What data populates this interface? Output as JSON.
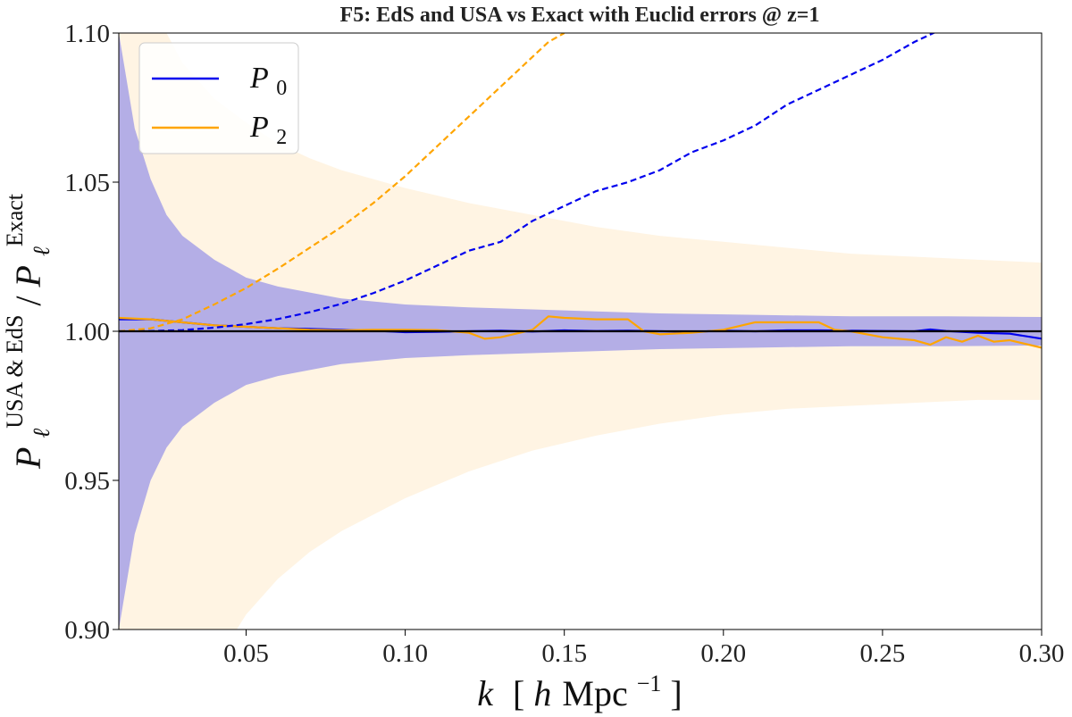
{
  "chart_data": {
    "type": "line",
    "title": "F5: EdS and USA vs Exact with Euclid errors @ z=1",
    "xlabel": {
      "var": "k",
      "unit_pre": "[",
      "unit_h": "h",
      "unit_main": "Mpc",
      "unit_sup": "−1",
      "unit_post": "]"
    },
    "ylabel": {
      "var": "P",
      "sub": "ℓ",
      "sup": "USA & EdS",
      "slash": "/",
      "var2": "P",
      "sub2": "ℓ",
      "sup2": "Exact"
    },
    "xlim": [
      0.01,
      0.3
    ],
    "ylim": [
      0.9,
      1.1
    ],
    "xticks": [
      0.05,
      0.1,
      0.15,
      0.2,
      0.25,
      0.3
    ],
    "xtick_labels": [
      "0.05",
      "0.10",
      "0.15",
      "0.20",
      "0.25",
      "0.30"
    ],
    "yticks": [
      0.9,
      0.95,
      1.0,
      1.05,
      1.1
    ],
    "ytick_labels": [
      "0.90",
      "0.95",
      "1.00",
      "1.05",
      "1.10"
    ],
    "grid": false,
    "legend_position": "top-left",
    "legend": [
      {
        "label_var": "P",
        "label_sub": "0",
        "color": "#0000ee"
      },
      {
        "label_var": "P",
        "label_sub": "2",
        "color": "#ffa500"
      }
    ],
    "reference_line": {
      "y": 1.0,
      "color": "#000000"
    },
    "bands": [
      {
        "name": "P2 Euclid error",
        "color": "#fff4e3",
        "x": [
          0.01,
          0.02,
          0.03,
          0.04,
          0.05,
          0.06,
          0.07,
          0.08,
          0.1,
          0.12,
          0.14,
          0.16,
          0.18,
          0.2,
          0.22,
          0.24,
          0.26,
          0.28,
          0.3
        ],
        "upper": [
          1.14,
          1.11,
          1.09,
          1.078,
          1.07,
          1.063,
          1.058,
          1.054,
          1.048,
          1.043,
          1.039,
          1.035,
          1.032,
          1.03,
          1.028,
          1.026,
          1.025,
          1.024,
          1.023
        ],
        "lower": [
          0.86,
          0.87,
          0.88,
          0.888,
          0.905,
          0.917,
          0.926,
          0.933,
          0.944,
          0.953,
          0.96,
          0.965,
          0.969,
          0.972,
          0.974,
          0.975,
          0.976,
          0.977,
          0.977
        ]
      },
      {
        "name": "P0 Euclid error",
        "color": "#b4aee6",
        "x": [
          0.01,
          0.015,
          0.02,
          0.025,
          0.03,
          0.04,
          0.05,
          0.06,
          0.08,
          0.1,
          0.12,
          0.15,
          0.18,
          0.21,
          0.24,
          0.27,
          0.3
        ],
        "upper": [
          1.1,
          1.068,
          1.051,
          1.039,
          1.032,
          1.024,
          1.018,
          1.015,
          1.011,
          1.009,
          1.008,
          1.007,
          1.006,
          1.0055,
          1.005,
          1.005,
          1.0048
        ],
        "lower": [
          0.9,
          0.932,
          0.95,
          0.961,
          0.968,
          0.976,
          0.982,
          0.985,
          0.989,
          0.991,
          0.992,
          0.993,
          0.994,
          0.9945,
          0.995,
          0.995,
          0.9952
        ]
      }
    ],
    "series": [
      {
        "name": "P0",
        "color": "#0000ee",
        "style": "solid",
        "x": [
          0.01,
          0.02,
          0.03,
          0.04,
          0.05,
          0.06,
          0.07,
          0.08,
          0.09,
          0.1,
          0.11,
          0.12,
          0.13,
          0.14,
          0.15,
          0.16,
          0.17,
          0.18,
          0.19,
          0.2,
          0.21,
          0.22,
          0.23,
          0.24,
          0.25,
          0.26,
          0.265,
          0.27,
          0.28,
          0.29,
          0.3
        ],
        "y": [
          1.004,
          1.004,
          1.003,
          1.002,
          1.0015,
          1.001,
          1.0008,
          1.0005,
          1.0002,
          0.9997,
          0.9998,
          1.0,
          1.0002,
          0.9999,
          1.0003,
          1.0001,
          1.0002,
          1.0,
          0.9998,
          1.0002,
          1.0,
          1.0003,
          1.0003,
          1.0002,
          1.0001,
          1.0,
          1.0006,
          1.0001,
          0.9995,
          0.9992,
          0.9975
        ]
      },
      {
        "name": "P2",
        "color": "#ffa500",
        "style": "solid",
        "x": [
          0.01,
          0.02,
          0.03,
          0.04,
          0.05,
          0.06,
          0.07,
          0.08,
          0.09,
          0.1,
          0.11,
          0.12,
          0.125,
          0.13,
          0.14,
          0.145,
          0.15,
          0.16,
          0.17,
          0.175,
          0.18,
          0.19,
          0.2,
          0.21,
          0.22,
          0.23,
          0.235,
          0.24,
          0.25,
          0.26,
          0.265,
          0.27,
          0.275,
          0.28,
          0.285,
          0.29,
          0.3
        ],
        "y": [
          1.0045,
          1.004,
          1.003,
          1.002,
          1.0015,
          1.001,
          1.0005,
          1.0003,
          1.0005,
          1.0005,
          1.0004,
          0.9995,
          0.9975,
          0.998,
          1.0005,
          1.005,
          1.0045,
          1.004,
          1.004,
          1.0,
          0.999,
          0.9995,
          1.0005,
          1.003,
          1.003,
          1.003,
          1.0005,
          1.0,
          0.998,
          0.997,
          0.9955,
          0.998,
          0.9965,
          0.9985,
          0.9965,
          0.997,
          0.9945
        ]
      },
      {
        "name": "P0 (dashed)",
        "color": "#0000ee",
        "style": "dashed",
        "x": [
          0.01,
          0.02,
          0.03,
          0.04,
          0.05,
          0.06,
          0.07,
          0.08,
          0.09,
          0.1,
          0.11,
          0.12,
          0.13,
          0.14,
          0.15,
          0.16,
          0.17,
          0.18,
          0.19,
          0.2,
          0.21,
          0.22,
          0.23,
          0.24,
          0.25,
          0.26,
          0.27
        ],
        "y": [
          1.0,
          1.0001,
          1.0004,
          1.0012,
          1.0024,
          1.0041,
          1.0064,
          1.0092,
          1.0128,
          1.017,
          1.022,
          1.027,
          1.03,
          1.037,
          1.042,
          1.047,
          1.05,
          1.054,
          1.06,
          1.064,
          1.069,
          1.076,
          1.081,
          1.086,
          1.091,
          1.097,
          1.102
        ]
      },
      {
        "name": "P2 (dashed)",
        "color": "#ffa500",
        "style": "dashed",
        "x": [
          0.01,
          0.02,
          0.03,
          0.04,
          0.05,
          0.06,
          0.07,
          0.08,
          0.09,
          0.1,
          0.11,
          0.12,
          0.13,
          0.14,
          0.145,
          0.15
        ],
        "y": [
          1.0,
          1.001,
          1.004,
          1.009,
          1.0145,
          1.021,
          1.028,
          1.035,
          1.043,
          1.052,
          1.062,
          1.072,
          1.082,
          1.092,
          1.097,
          1.1
        ]
      }
    ]
  }
}
